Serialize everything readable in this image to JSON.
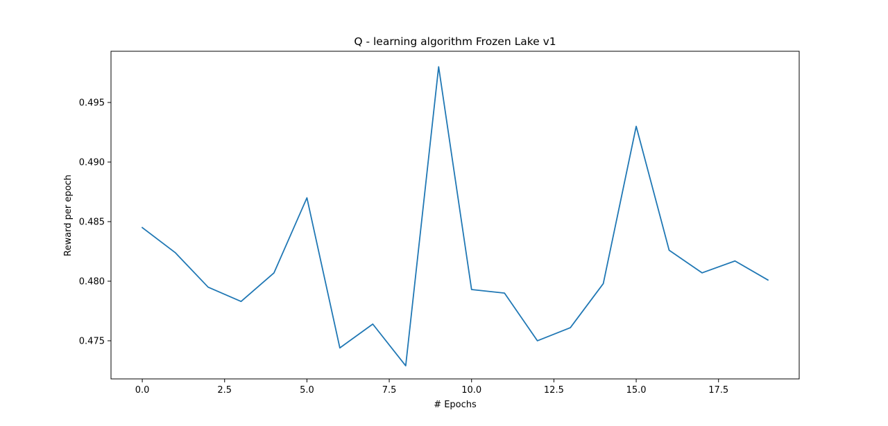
{
  "chart_data": {
    "type": "line",
    "title": "Q - learning algorithm Frozen Lake v1",
    "xlabel": "# Epochs",
    "ylabel": "Reward per epoch",
    "xlim": [
      -0.95,
      19.95
    ],
    "ylim": [
      0.4718,
      0.4993
    ],
    "x_ticks": [
      0.0,
      2.5,
      5.0,
      7.5,
      10.0,
      12.5,
      15.0,
      17.5
    ],
    "x_tick_labels": [
      "0.0",
      "2.5",
      "5.0",
      "7.5",
      "10.0",
      "12.5",
      "15.0",
      "17.5"
    ],
    "y_ticks": [
      0.475,
      0.48,
      0.485,
      0.49,
      0.495
    ],
    "y_tick_labels": [
      "0.475",
      "0.480",
      "0.485",
      "0.490",
      "0.495"
    ],
    "grid": false,
    "series": [
      {
        "color": "#1f77b4",
        "x": [
          0,
          1,
          2,
          3,
          4,
          5,
          6,
          7,
          8,
          9,
          10,
          11,
          12,
          13,
          14,
          15,
          16,
          17,
          18,
          19
        ],
        "values": [
          0.4845,
          0.4824,
          0.4795,
          0.4783,
          0.4807,
          0.487,
          0.4744,
          0.4764,
          0.4729,
          0.498,
          0.4793,
          0.479,
          0.475,
          0.4761,
          0.4798,
          0.493,
          0.4826,
          0.4807,
          0.4817,
          0.4801
        ]
      }
    ]
  }
}
